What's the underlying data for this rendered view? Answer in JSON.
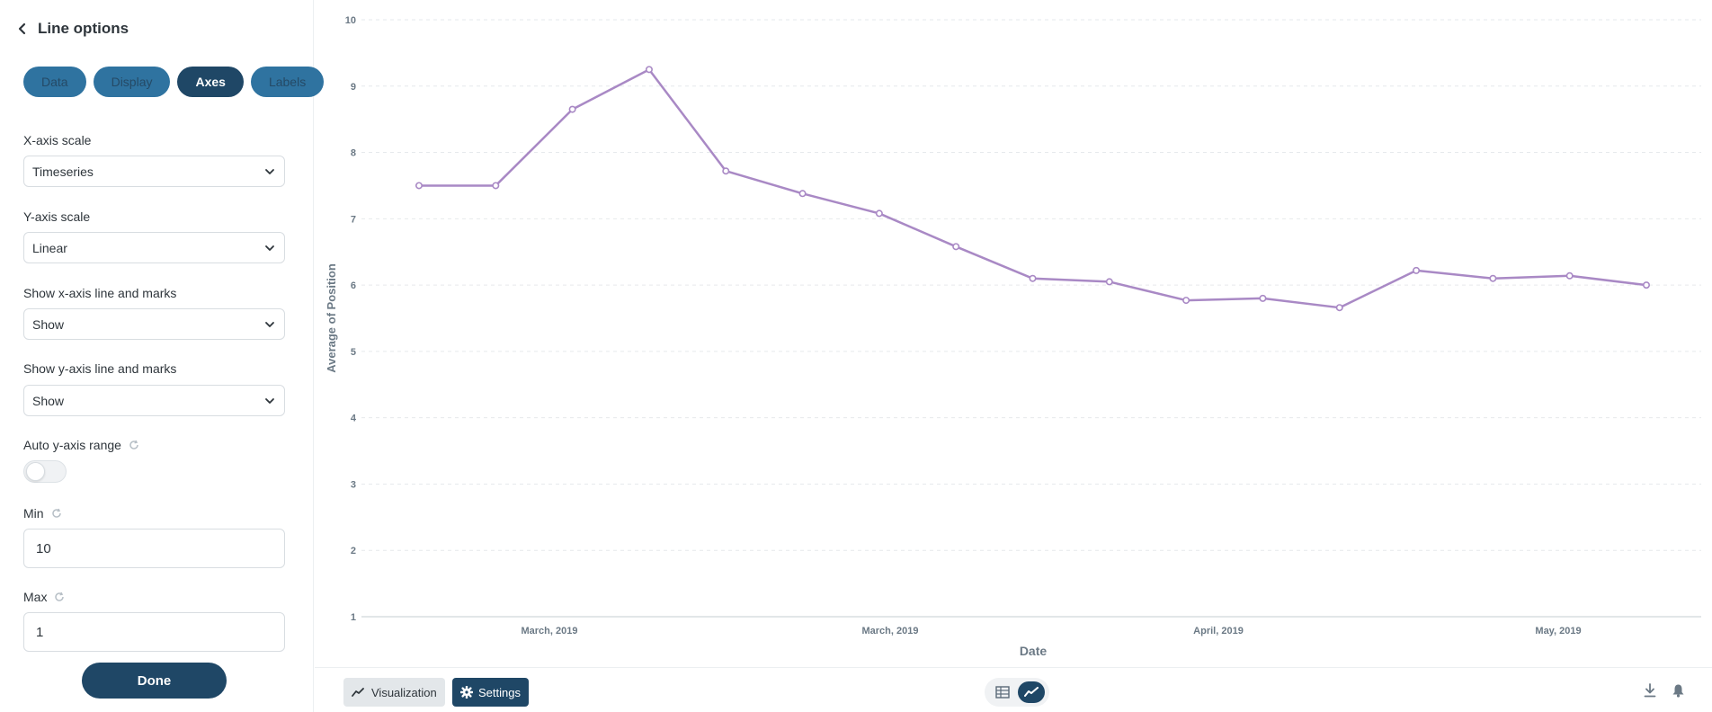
{
  "sidebar": {
    "title": "Line options",
    "tabs": [
      {
        "label": "Data",
        "active": false
      },
      {
        "label": "Display",
        "active": false
      },
      {
        "label": "Axes",
        "active": true
      },
      {
        "label": "Labels",
        "active": false
      }
    ],
    "fields": {
      "x_scale": {
        "label": "X-axis scale",
        "value": "Timeseries"
      },
      "y_scale": {
        "label": "Y-axis scale",
        "value": "Linear"
      },
      "show_x": {
        "label": "Show x-axis line and marks",
        "value": "Show"
      },
      "show_y": {
        "label": "Show y-axis line and marks",
        "value": "Show"
      },
      "auto_range": {
        "label": "Auto y-axis range",
        "on": false
      },
      "min": {
        "label": "Min",
        "value": "10"
      },
      "max": {
        "label": "Max",
        "value": "1"
      }
    },
    "done_label": "Done"
  },
  "footer": {
    "viz_label": "Visualization",
    "settings_label": "Settings"
  },
  "colors": {
    "accent": "#1f4766",
    "tab_inactive": "#2f73a0",
    "line": "#a989c5"
  },
  "chart_data": {
    "type": "line",
    "xlabel": "Date",
    "ylabel": "Average of Position",
    "ylim": [
      1,
      10
    ],
    "yticks": [
      1,
      2,
      3,
      4,
      5,
      6,
      7,
      8,
      9,
      10
    ],
    "x_tick_labels": [
      "March, 2019",
      "March, 2019",
      "April, 2019",
      "May, 2019"
    ],
    "grid": true,
    "series": [
      {
        "values": [
          7.5,
          7.5,
          8.65,
          9.25,
          7.72,
          7.38,
          7.08,
          6.58,
          6.1,
          6.05,
          5.77,
          5.8,
          5.66,
          6.22,
          6.1,
          6.14,
          6.0
        ]
      }
    ]
  }
}
